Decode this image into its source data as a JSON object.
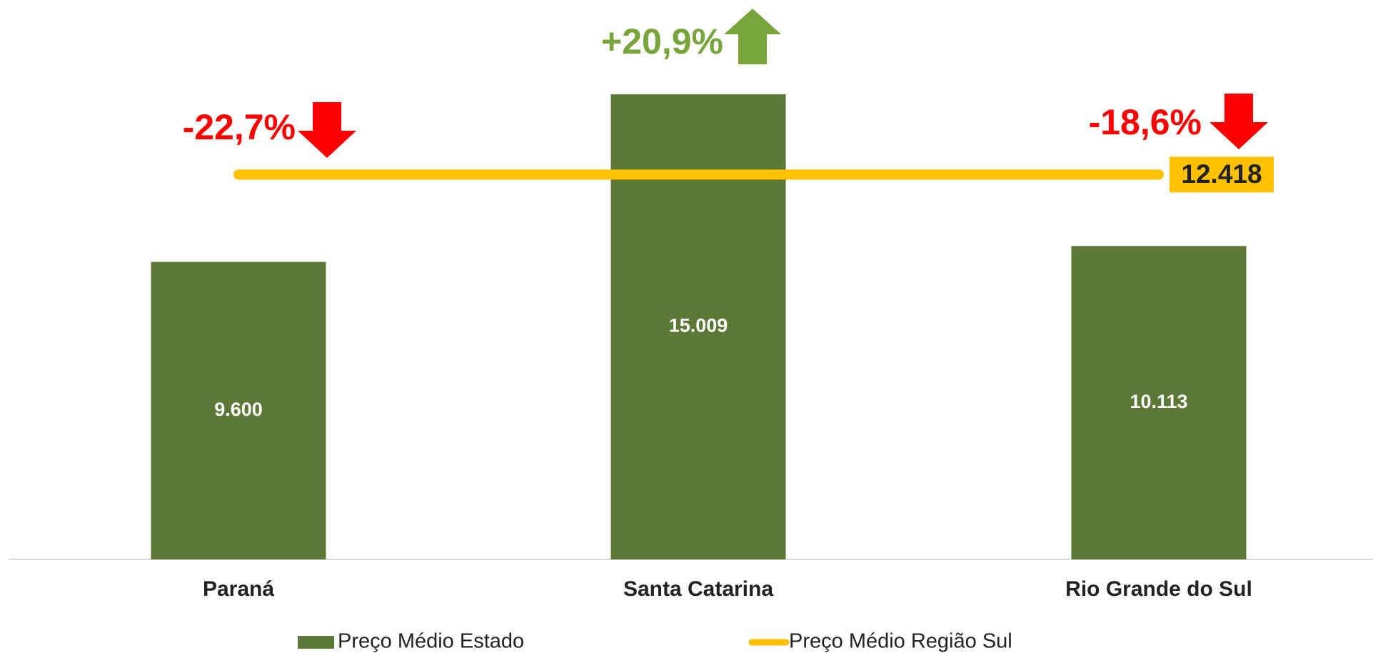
{
  "chart_data": {
    "type": "bar",
    "categories": [
      "Paraná",
      "Santa Catarina",
      "Rio Grande do Sul"
    ],
    "series": [
      {
        "name": "Preço Médio Estado",
        "type": "bar",
        "color": "#5b7836",
        "values": [
          9600,
          15009,
          10113
        ],
        "value_labels": [
          "9.600",
          "15.009",
          "10.113"
        ]
      },
      {
        "name": "Preço Médio Região Sul",
        "type": "line",
        "color": "#ffc000",
        "values": [
          12418,
          12418,
          12418
        ],
        "value_labels": [
          null,
          null,
          "12.418"
        ]
      }
    ],
    "annotations": [
      "-22,7%",
      "+20,9%",
      "-18,6%"
    ],
    "up_color": "#77a53b",
    "down_color": "#ff0000",
    "legend": "bottom"
  }
}
